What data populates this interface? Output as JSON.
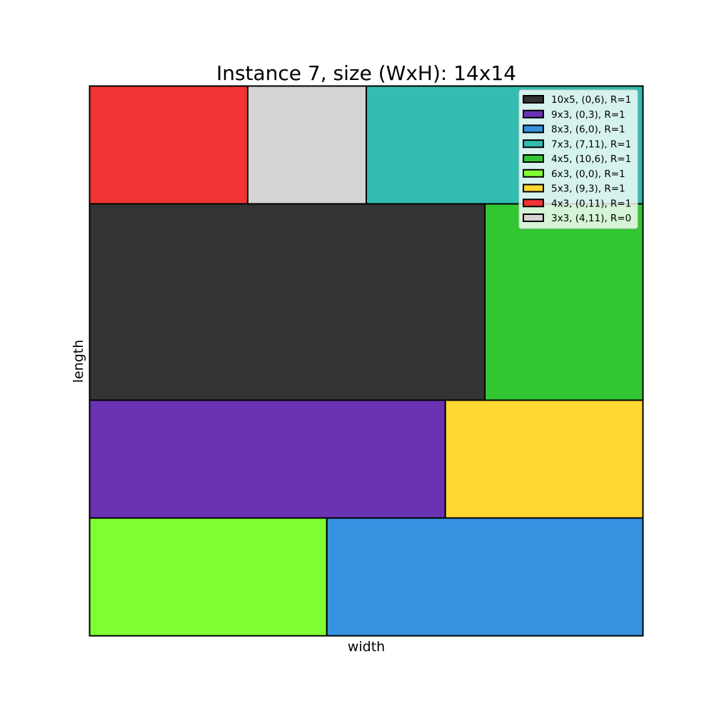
{
  "title": "Instance 7, size (WxH): 14x14",
  "xlabel": "width",
  "ylabel": "length",
  "chart_data": {
    "type": "rectangle-packing",
    "container": {
      "width": 14,
      "height": 14
    },
    "xlim": [
      0,
      14
    ],
    "ylim": [
      0,
      14
    ],
    "grid": false,
    "legend_position": "top-right",
    "pieces": [
      {
        "label": "10x5, (0,6), R=1",
        "x": 0,
        "y": 6,
        "w": 10,
        "h": 5,
        "color": "#333333"
      },
      {
        "label": "9x3, (0,3), R=1",
        "x": 0,
        "y": 3,
        "w": 9,
        "h": 3,
        "color": "#6a33b4"
      },
      {
        "label": "8x3, (6,0), R=1",
        "x": 6,
        "y": 0,
        "w": 8,
        "h": 3,
        "color": "#3692e1"
      },
      {
        "label": "7x3, (7,11), R=1",
        "x": 7,
        "y": 11,
        "w": 7,
        "h": 3,
        "color": "#33bcb0"
      },
      {
        "label": "4x5, (10,6), R=1",
        "x": 10,
        "y": 6,
        "w": 4,
        "h": 5,
        "color": "#33c633"
      },
      {
        "label": "6x3, (0,0), R=1",
        "x": 0,
        "y": 0,
        "w": 6,
        "h": 3,
        "color": "#7fff33"
      },
      {
        "label": "5x3, (9,3), R=1",
        "x": 9,
        "y": 3,
        "w": 5,
        "h": 3,
        "color": "#ffd733"
      },
      {
        "label": "4x3, (0,11), R=1",
        "x": 0,
        "y": 11,
        "w": 4,
        "h": 3,
        "color": "#f23434"
      },
      {
        "label": "3x3, (4,11), R=0",
        "x": 4,
        "y": 11,
        "w": 3,
        "h": 3,
        "color": "#d4d4d4"
      }
    ]
  }
}
